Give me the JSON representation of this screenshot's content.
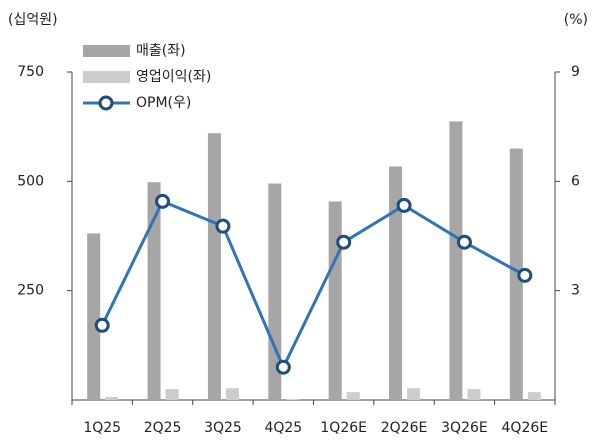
{
  "chart_data": {
    "type": "bar_line",
    "y_label": "(십억원)",
    "y2_label": "(%)",
    "categories": [
      "1Q25",
      "2Q25",
      "3Q25",
      "4Q25",
      "1Q26E",
      "2Q26E",
      "3Q26E",
      "4Q26E"
    ],
    "series": [
      {
        "name": "매출(좌)",
        "color": "#a6a6a6",
        "type": "bar",
        "values": [
          381,
          498,
          610,
          495,
          454,
          534,
          637,
          575
        ]
      },
      {
        "name": "영업이익(좌)",
        "color": "#cccccc",
        "type": "bar",
        "values": [
          7,
          25,
          27,
          2,
          18,
          27,
          25,
          18
        ]
      },
      {
        "name": "OPM(우)",
        "color": "#2e75b6",
        "type": "line",
        "axis": "y2",
        "values": [
          2.05,
          5.45,
          4.77,
          0.9,
          4.33,
          5.34,
          4.33,
          3.42
        ]
      }
    ],
    "ylim": [
      0,
      750
    ],
    "yticks": [
      250,
      500,
      750
    ],
    "y2lim": [
      0,
      9
    ],
    "y2ticks": [
      3,
      6,
      9
    ],
    "legend": "top-left",
    "grid": false
  }
}
